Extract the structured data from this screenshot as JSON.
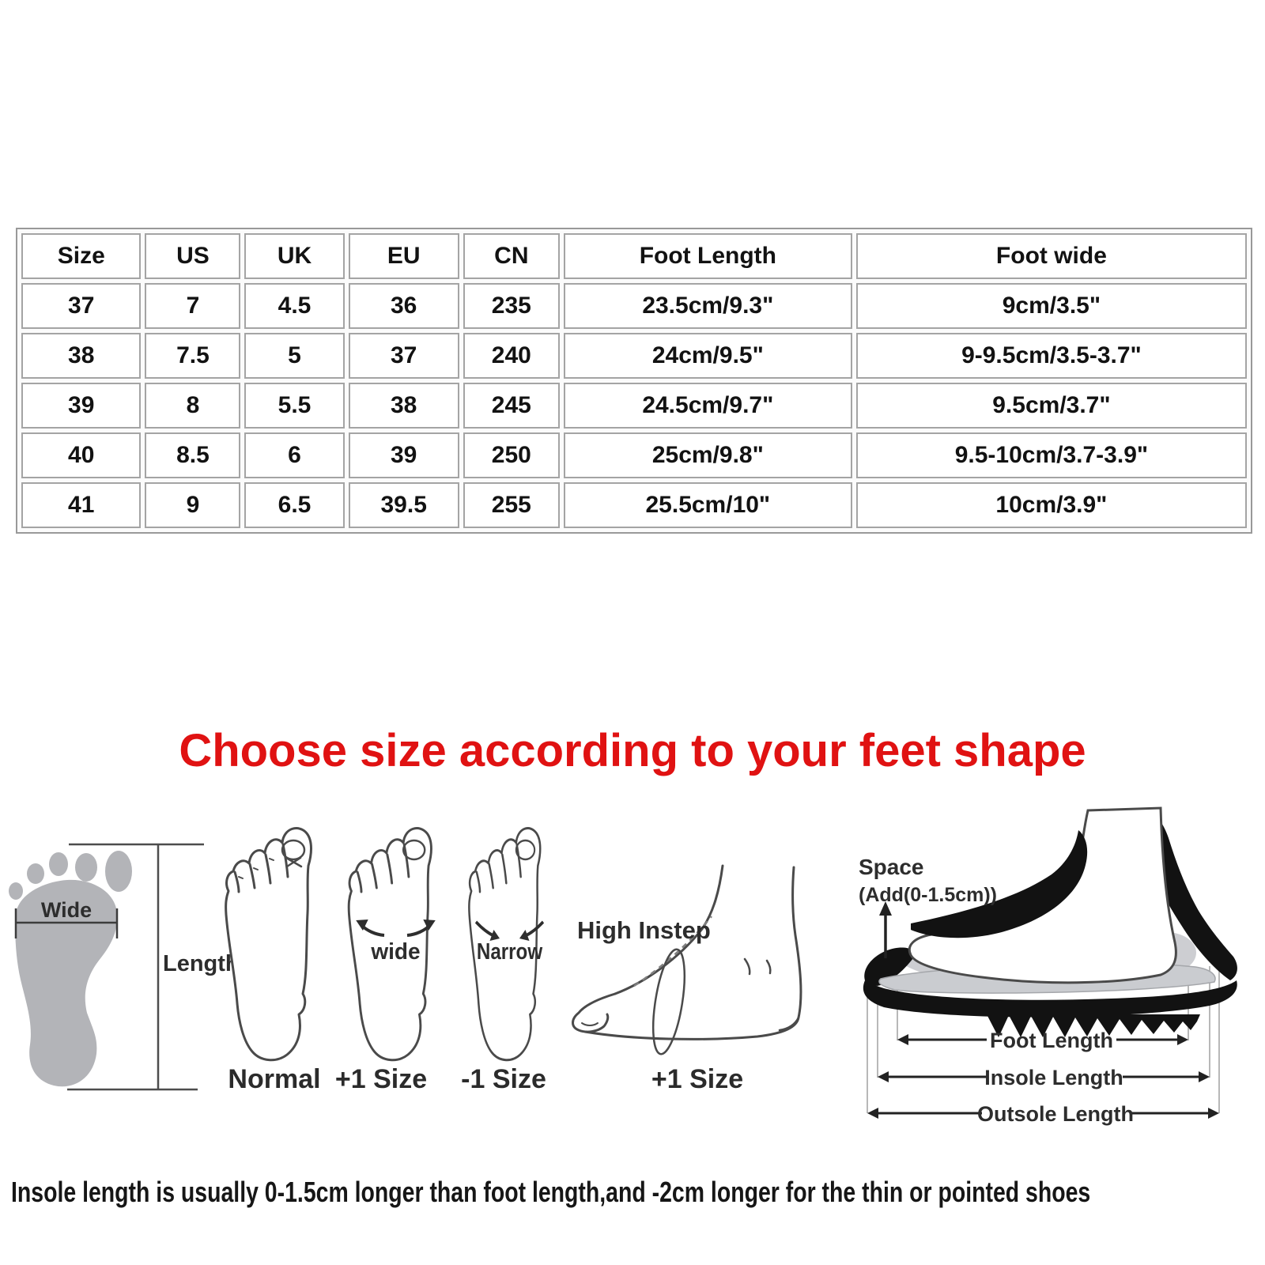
{
  "size_table": {
    "headers": [
      "Size",
      "US",
      "UK",
      "EU",
      "CN",
      "Foot Length",
      "Foot wide"
    ],
    "rows": [
      [
        "37",
        "7",
        "4.5",
        "36",
        "235",
        "23.5cm/9.3\"",
        "9cm/3.5\""
      ],
      [
        "38",
        "7.5",
        "5",
        "37",
        "240",
        "24cm/9.5\"",
        "9-9.5cm/3.5-3.7\""
      ],
      [
        "39",
        "8",
        "5.5",
        "38",
        "245",
        "24.5cm/9.7\"",
        "9.5cm/3.7\""
      ],
      [
        "40",
        "8.5",
        "6",
        "39",
        "250",
        "25cm/9.8\"",
        "9.5-10cm/3.7-3.9\""
      ],
      [
        "41",
        "9",
        "6.5",
        "39.5",
        "255",
        "25.5cm/10\"",
        "10cm/3.9\""
      ]
    ]
  },
  "heading": {
    "text": "Choose size according to your feet shape",
    "color": "#e01212"
  },
  "foot_measure_diagram": {
    "wide_label": "Wide",
    "length_label": "Length"
  },
  "foot_shape_guide": {
    "normal": {
      "label": "Normal",
      "annotation": ""
    },
    "wide": {
      "label": "+1 Size",
      "annotation": "wide"
    },
    "narrow": {
      "label": "-1 Size",
      "annotation": "Narrow"
    },
    "high_instep": {
      "label": "+1 Size",
      "annotation": "High Instep"
    }
  },
  "shoe_diagram": {
    "space_label": "Space",
    "space_note": "(Add(0-1.5cm))",
    "foot_length_label": "Foot Length",
    "insole_length_label": "Insole Length",
    "outsole_length_label": "Outsole Length"
  },
  "footnote": "Insole length is usually 0-1.5cm longer than foot length,and -2cm longer for the thin or pointed shoes",
  "colors": {
    "accent_red": "#e01212",
    "footprint_gray": "#b3b4b8",
    "outline_gray": "#4a4a4a",
    "table_border": "#9a9a9a"
  }
}
